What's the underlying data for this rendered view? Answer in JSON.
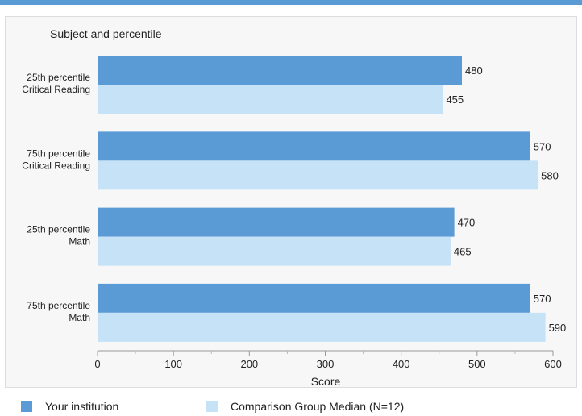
{
  "colors": {
    "accent_bar": "#5b9bd5",
    "series_primary": "#5b9bd5",
    "series_secondary": "#c6e2f7",
    "background": "#f7f7f7"
  },
  "chart_data": {
    "type": "bar",
    "orientation": "horizontal",
    "title": "Subject and percentile",
    "xlabel": "Score",
    "ylabel": "",
    "xlim": [
      0,
      600
    ],
    "xticks": [
      0,
      100,
      200,
      300,
      400,
      500,
      600
    ],
    "grid": false,
    "legend_position": "bottom",
    "categories": [
      [
        "25th percentile",
        "Critical Reading"
      ],
      [
        "75th percentile",
        "Critical Reading"
      ],
      [
        "25th percentile",
        "Math"
      ],
      [
        "75th percentile",
        "Math"
      ]
    ],
    "series": [
      {
        "name": "Your institution",
        "color": "#5b9bd5",
        "values": [
          480,
          570,
          470,
          570
        ]
      },
      {
        "name": "Comparison Group Median (N=12)",
        "color": "#c6e2f7",
        "values": [
          455,
          580,
          465,
          590
        ]
      }
    ]
  }
}
